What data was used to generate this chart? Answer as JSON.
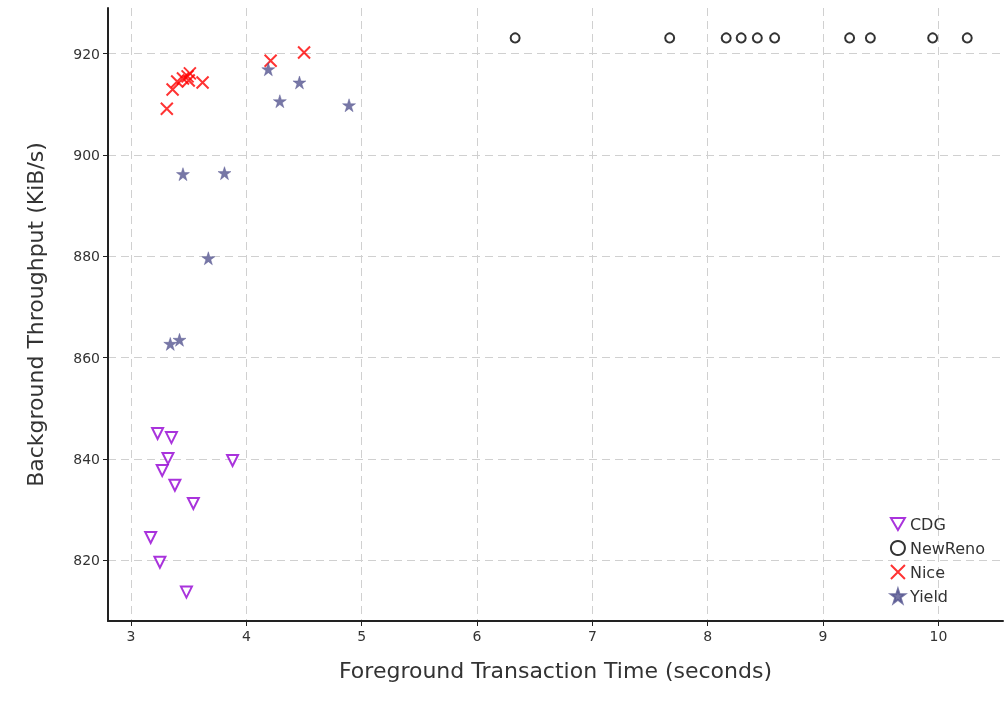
{
  "chart_data": {
    "type": "scatter",
    "xlabel": "Foreground Transaction Time (seconds)",
    "ylabel": "Background Throughput (KiB/s)",
    "xlim": [
      2.8,
      10.56
    ],
    "ylim": [
      808,
      929
    ],
    "xticks": [
      3,
      4,
      5,
      6,
      7,
      8,
      9,
      10
    ],
    "yticks": [
      820,
      840,
      860,
      880,
      900,
      920
    ],
    "grid": true,
    "legend": "bottom right",
    "series": [
      {
        "name": "CDG",
        "color": "#9400d3",
        "marker": "triangle",
        "x": [
          3.23,
          3.35,
          3.32,
          3.27,
          3.38,
          3.54,
          3.88,
          3.17,
          3.25,
          3.48
        ],
        "values": [
          845.0,
          844.2,
          840.1,
          837.7,
          834.8,
          831.2,
          839.7,
          824.5,
          819.6,
          813.7
        ]
      },
      {
        "name": "NewReno",
        "color": "#000000",
        "marker": "circle",
        "x": [
          6.33,
          7.67,
          8.16,
          8.29,
          8.43,
          8.58,
          9.23,
          9.41,
          9.95,
          10.25
        ],
        "values": [
          923.1,
          923.1,
          923.1,
          923.1,
          923.1,
          923.1,
          923.1,
          923.1,
          923.1,
          923.1
        ]
      },
      {
        "name": "Nice",
        "color": "#ff0000",
        "marker": "cross",
        "x": [
          3.31,
          3.36,
          3.4,
          3.45,
          3.49,
          3.5,
          3.51,
          3.62,
          4.21,
          4.5
        ],
        "values": [
          909.1,
          912.9,
          914.5,
          915.1,
          915.5,
          914.7,
          916.1,
          914.3,
          918.6,
          920.2
        ]
      },
      {
        "name": "Yield",
        "color": "#555590",
        "marker": "star",
        "x": [
          4.19,
          4.46,
          4.29,
          4.89,
          3.45,
          3.81,
          3.67,
          3.34,
          3.42
        ],
        "values": [
          916.9,
          914.3,
          910.6,
          909.8,
          896.2,
          896.4,
          879.6,
          862.7,
          863.5
        ]
      }
    ]
  }
}
